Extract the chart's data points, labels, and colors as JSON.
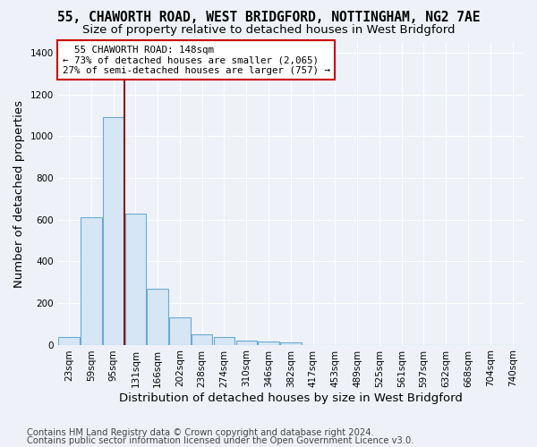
{
  "title": "55, CHAWORTH ROAD, WEST BRIDGFORD, NOTTINGHAM, NG2 7AE",
  "subtitle": "Size of property relative to detached houses in West Bridgford",
  "xlabel": "Distribution of detached houses by size in West Bridgford",
  "ylabel": "Number of detached properties",
  "footnote1": "Contains HM Land Registry data © Crown copyright and database right 2024.",
  "footnote2": "Contains public sector information licensed under the Open Government Licence v3.0.",
  "bin_labels": [
    "23sqm",
    "59sqm",
    "95sqm",
    "131sqm",
    "166sqm",
    "202sqm",
    "238sqm",
    "274sqm",
    "310sqm",
    "346sqm",
    "382sqm",
    "417sqm",
    "453sqm",
    "489sqm",
    "525sqm",
    "561sqm",
    "597sqm",
    "632sqm",
    "668sqm",
    "704sqm",
    "740sqm"
  ],
  "bar_heights": [
    35,
    610,
    1090,
    630,
    270,
    130,
    50,
    35,
    20,
    15,
    10,
    0,
    0,
    0,
    0,
    0,
    0,
    0,
    0,
    0,
    0
  ],
  "bar_color": "#d6e6f5",
  "bar_edge_color": "#6aaad4",
  "ylim": [
    0,
    1450
  ],
  "yticks": [
    0,
    200,
    400,
    600,
    800,
    1000,
    1200,
    1400
  ],
  "vline_x": 2.52,
  "vline_color": "#8b1a1a",
  "annotation_text": "  55 CHAWORTH ROAD: 148sqm  \n← 73% of detached houses are smaller (2,065)\n27% of semi-detached houses are larger (757) →",
  "annotation_box_color": "#ffffff",
  "annotation_border_color": "#cc0000",
  "background_color": "#eef2f8",
  "grid_color": "#ffffff",
  "title_fontsize": 10.5,
  "subtitle_fontsize": 9.5,
  "axis_label_fontsize": 9.5,
  "tick_fontsize": 7.5,
  "annotation_fontsize": 7.8,
  "footnote_fontsize": 7.2
}
